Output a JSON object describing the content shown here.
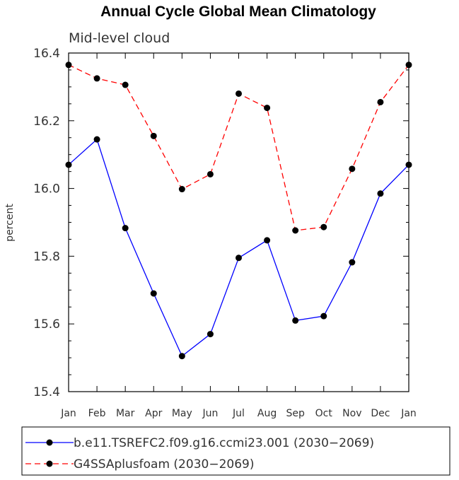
{
  "chart_data": {
    "type": "line",
    "title": "Annual Cycle Global Mean Climatology",
    "subtitle": "Mid-level cloud",
    "xlabel": "",
    "ylabel": "percent",
    "categories": [
      "Jan",
      "Feb",
      "Mar",
      "Apr",
      "May",
      "Jun",
      "Jul",
      "Aug",
      "Sep",
      "Oct",
      "Nov",
      "Dec",
      "Jan"
    ],
    "yticks": [
      "16.4",
      "16.2",
      "16.0",
      "15.8",
      "15.6",
      "15.4"
    ],
    "ylim": [
      15.4,
      16.4
    ],
    "grid": false,
    "legend_position": "bottom",
    "series": [
      {
        "name": "b.e11.TSREFC2.f09.g16.ccmi23.001 (2030−2069)",
        "color": "#0000ff",
        "dash": "solid",
        "values": [
          16.07,
          16.145,
          15.883,
          15.69,
          15.505,
          15.57,
          15.795,
          15.847,
          15.61,
          15.623,
          15.782,
          15.985,
          16.07
        ]
      },
      {
        "name": "G4SSAplusfoam (2030−2069)",
        "color": "#ff0000",
        "dash": "dashed",
        "values": [
          16.365,
          16.325,
          16.306,
          16.155,
          15.998,
          16.042,
          16.28,
          16.238,
          15.876,
          15.886,
          16.058,
          16.255,
          16.365
        ]
      }
    ]
  }
}
